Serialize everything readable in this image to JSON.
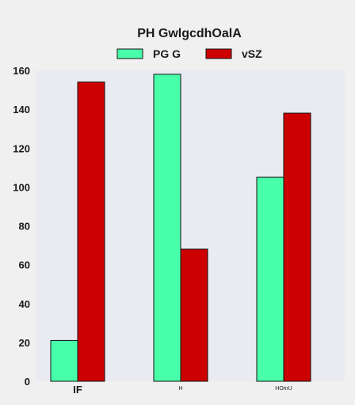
{
  "chart_data": {
    "type": "bar",
    "title": "PH GwlgcdhOalA",
    "categories": [
      "IF",
      "H",
      "HOmU"
    ],
    "series": [
      {
        "name": "PG G",
        "values": [
          21,
          158,
          105
        ],
        "color": "#48ffaa"
      },
      {
        "name": "vSZ",
        "values": [
          154,
          68,
          138
        ],
        "color": "#cc0000"
      }
    ],
    "ylim": [
      0,
      160
    ],
    "yticks": [
      0,
      20,
      40,
      60,
      80,
      100,
      120,
      140,
      160
    ],
    "xlabel": "",
    "ylabel": "",
    "grid": false,
    "legend": "top-center",
    "plot_background": "#eaeaf2"
  }
}
